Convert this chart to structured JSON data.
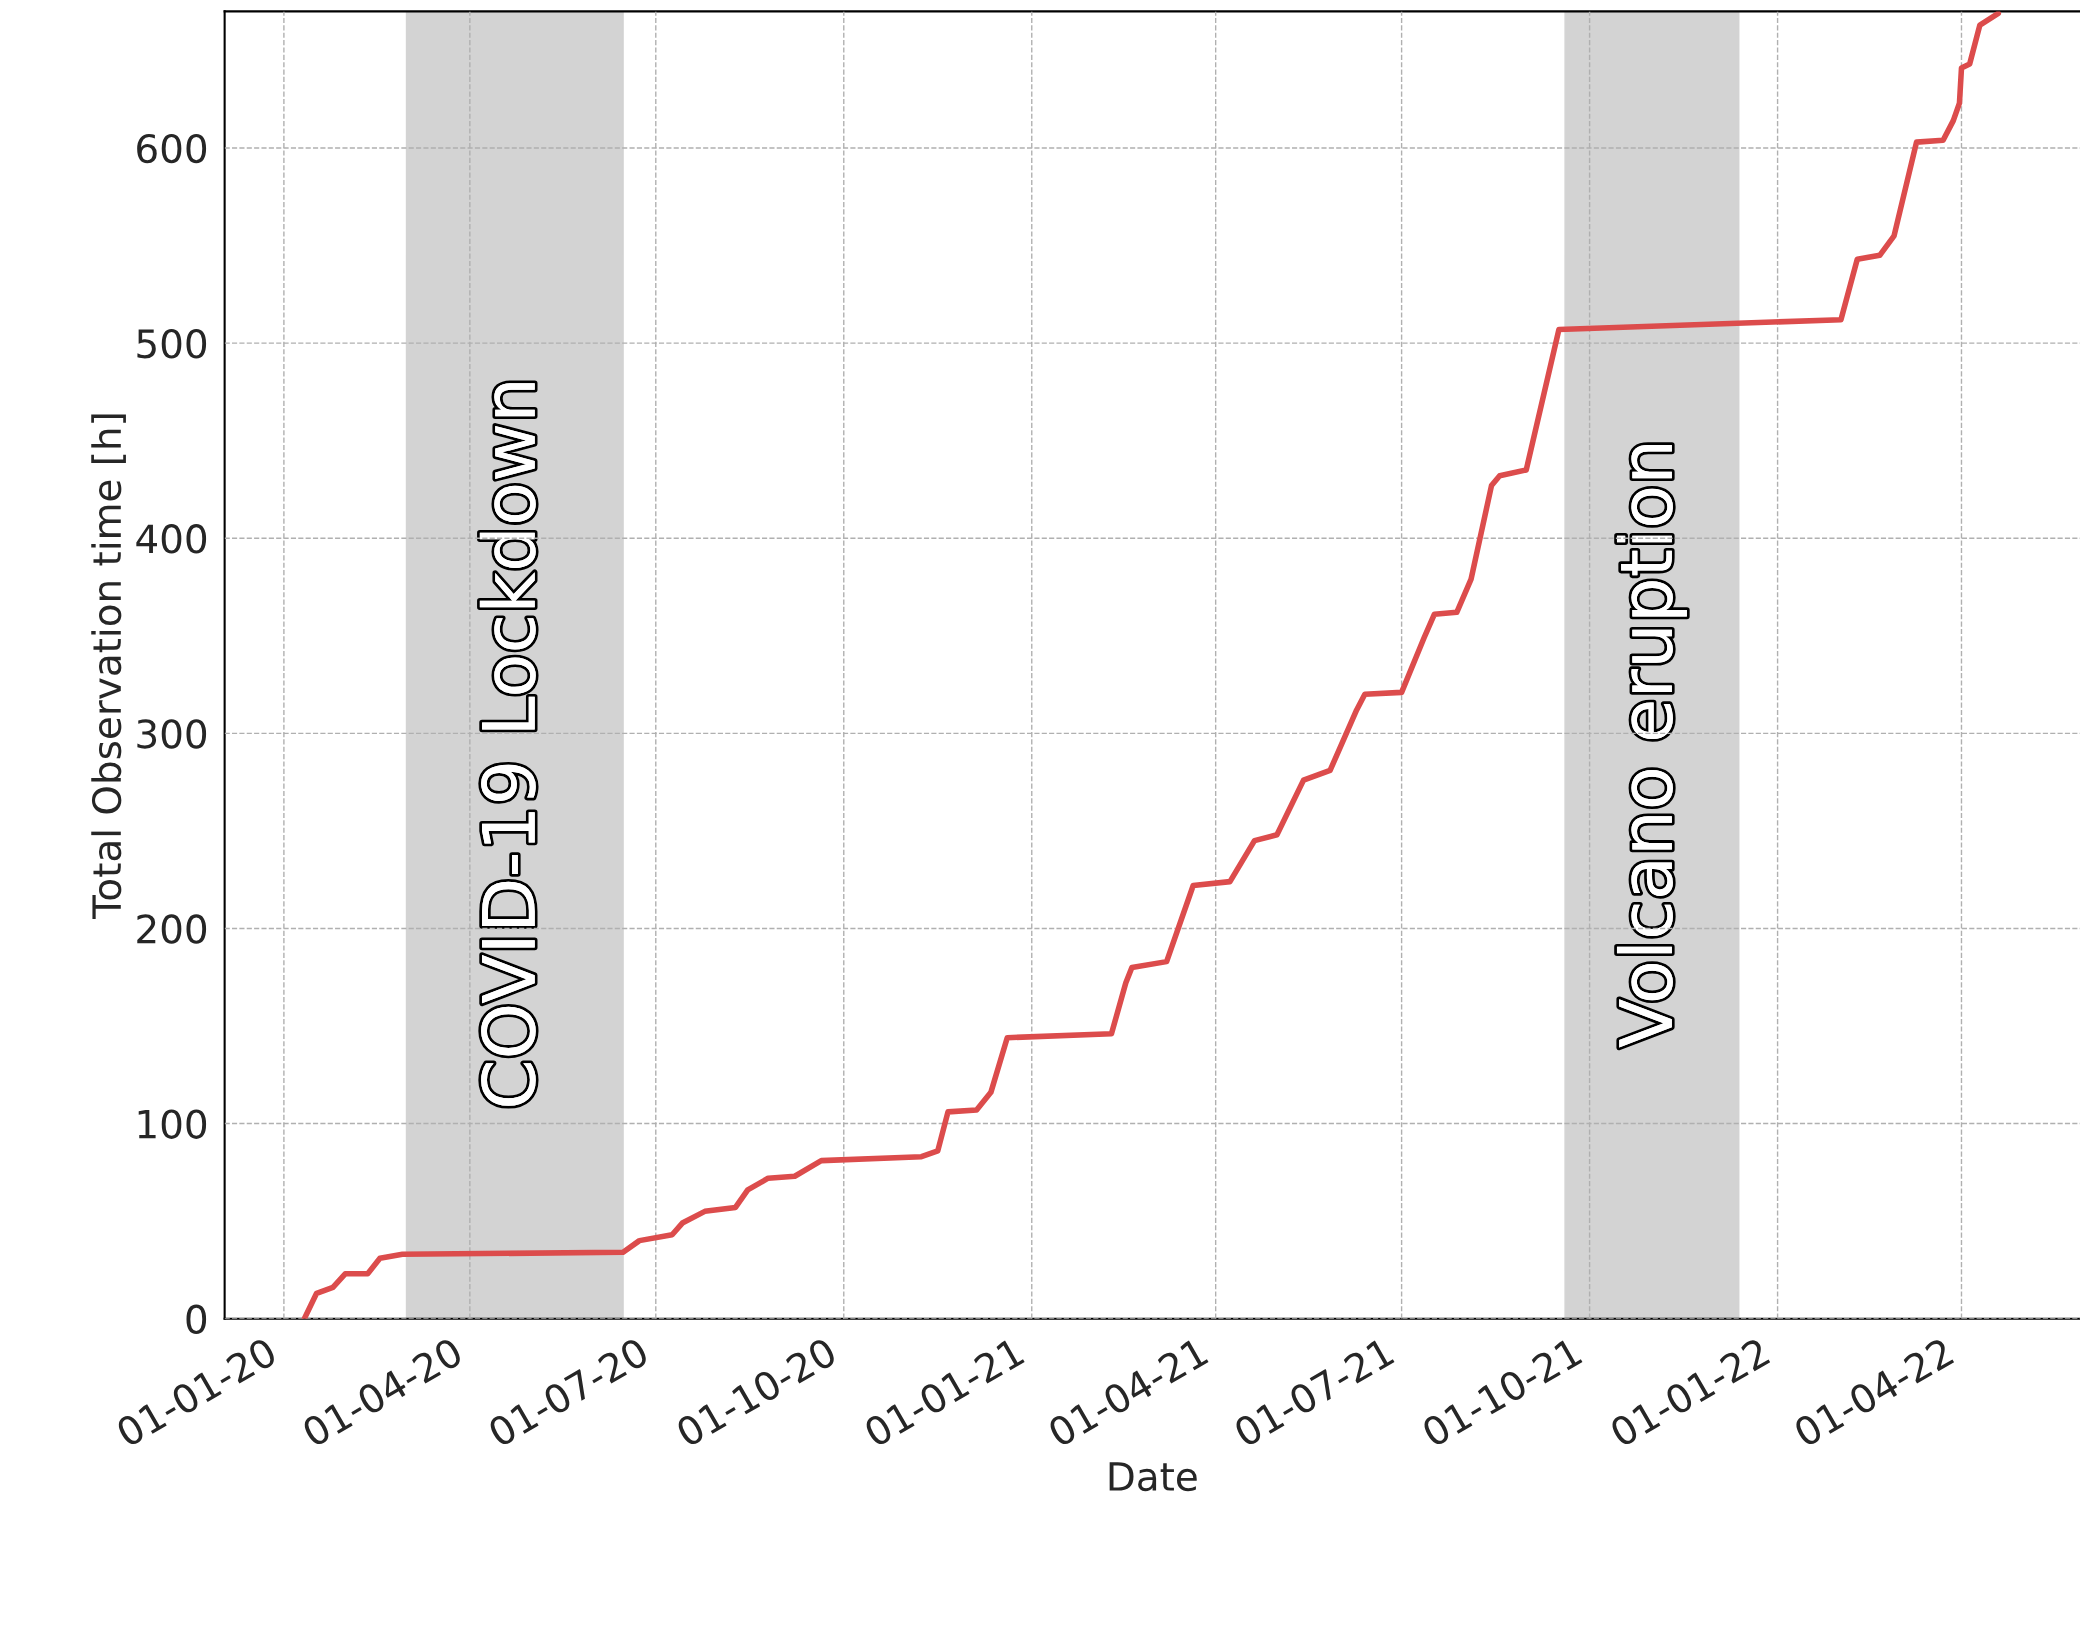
{
  "chart_data": {
    "type": "line",
    "xlabel": "Date",
    "ylabel": "Total Observation time [h]",
    "x": [
      "2020-01-11",
      "2020-01-17",
      "2020-01-25",
      "2020-01-31",
      "2020-02-11",
      "2020-02-17",
      "2020-02-28",
      "2020-06-15",
      "2020-06-23",
      "2020-07-09",
      "2020-07-14",
      "2020-07-25",
      "2020-08-09",
      "2020-08-15",
      "2020-08-25",
      "2020-09-07",
      "2020-09-20",
      "2020-11-08",
      "2020-11-16",
      "2020-11-21",
      "2020-12-05",
      "2020-12-12",
      "2020-12-20",
      "2021-02-09",
      "2021-02-16",
      "2021-02-19",
      "2021-03-08",
      "2021-03-21",
      "2021-04-08",
      "2021-04-20",
      "2021-05-01",
      "2021-05-14",
      "2021-05-27",
      "2021-06-09",
      "2021-06-13",
      "2021-07-01",
      "2021-07-12",
      "2021-07-17",
      "2021-07-28",
      "2021-08-04",
      "2021-08-14",
      "2021-08-18",
      "2021-08-31",
      "2021-09-16",
      "2022-02-01",
      "2022-02-09",
      "2022-02-20",
      "2022-02-27",
      "2022-03-10",
      "2022-03-23",
      "2022-03-28",
      "2022-03-31",
      "2022-04-01",
      "2022-04-05",
      "2022-04-10",
      "2022-04-19"
    ],
    "series": [
      {
        "color": "#dc4c4c",
        "values": [
          0,
          13,
          16,
          23,
          23,
          31,
          33,
          34,
          40,
          43,
          49,
          55,
          57,
          66,
          72,
          73,
          81,
          83,
          86,
          106,
          107,
          116,
          144,
          146,
          172,
          180,
          183,
          222,
          224,
          245,
          248,
          276,
          281,
          312,
          320,
          321,
          349,
          361,
          362,
          379,
          427,
          432,
          435,
          507,
          512,
          543,
          545,
          555,
          603,
          604,
          614,
          623,
          641,
          643,
          663,
          669
        ]
      }
    ],
    "xlim": [
      "2019-12-03",
      "2022-05-29"
    ],
    "ylim": [
      0,
      670
    ],
    "xticks": [
      {
        "value": "2020-01-01",
        "label": "01-01-20"
      },
      {
        "value": "2020-04-01",
        "label": "01-04-20"
      },
      {
        "value": "2020-07-01",
        "label": "01-07-20"
      },
      {
        "value": "2020-10-01",
        "label": "01-10-20"
      },
      {
        "value": "2021-01-01",
        "label": "01-01-21"
      },
      {
        "value": "2021-04-01",
        "label": "01-04-21"
      },
      {
        "value": "2021-07-01",
        "label": "01-07-21"
      },
      {
        "value": "2021-10-01",
        "label": "01-10-21"
      },
      {
        "value": "2022-01-01",
        "label": "01-01-22"
      },
      {
        "value": "2022-04-01",
        "label": "01-04-22"
      }
    ],
    "yticks": [
      0,
      100,
      200,
      300,
      400,
      500,
      600
    ],
    "bands": [
      {
        "axis": "x",
        "from": "2020-03-01",
        "to": "2020-06-15",
        "label": "COVID-19 Lockdown",
        "color": "#d3d3d3"
      },
      {
        "axis": "x",
        "from": "2021-09-19",
        "to": "2021-12-13",
        "label": "Volcano eruption",
        "color": "#d3d3d3"
      }
    ],
    "grid": true,
    "line_style": "solid",
    "marker": "none"
  }
}
